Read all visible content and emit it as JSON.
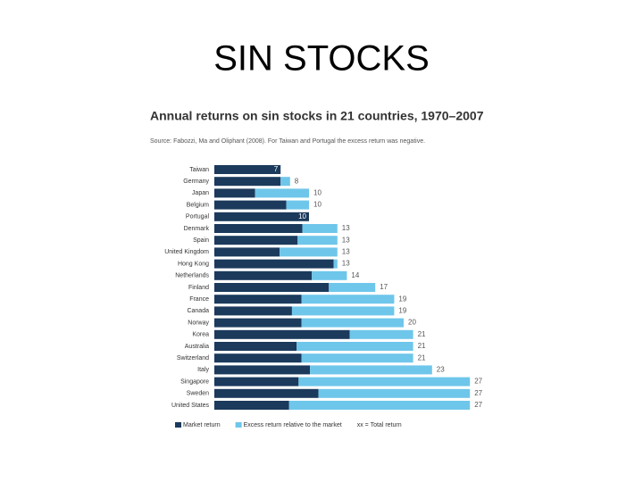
{
  "slide_title": "SIN STOCKS",
  "chart_data": {
    "type": "bar",
    "orientation": "horizontal",
    "stacked": true,
    "title": "Annual returns on sin stocks in 21 countries, 1970–2007",
    "subtitle": "Source: Fabozzi, Ma and Oliphant (2008). For Taiwan and Portugal the excess return was negative.",
    "categories": [
      "Taiwan",
      "Germany",
      "Japan",
      "Belgium",
      "Portugal",
      "Denmark",
      "Spain",
      "United Kingdom",
      "Hong Kong",
      "Netherlands",
      "Finland",
      "France",
      "Canada",
      "Norway",
      "Korea",
      "Australia",
      "Switzerland",
      "Italy",
      "Singapore",
      "Sweden",
      "United States"
    ],
    "series": [
      {
        "name": "Market return",
        "color": "#1b3a5c",
        "values": [
          7,
          7,
          4.3,
          7.6,
          10,
          9.3,
          8.8,
          6.9,
          12.6,
          10.3,
          12.1,
          9.2,
          8.2,
          9.2,
          14.3,
          8.7,
          9.2,
          10.1,
          8.9,
          11,
          7.9
        ]
      },
      {
        "name": "Excess return relative to the market",
        "color": "#6ec6ea",
        "values": [
          null,
          1,
          5.7,
          2.4,
          null,
          3.7,
          4.2,
          6.1,
          0.4,
          3.7,
          4.9,
          9.8,
          10.8,
          10.8,
          6.7,
          12.3,
          11.8,
          12.9,
          18.1,
          16,
          19.1
        ]
      }
    ],
    "totals": [
      7,
      8,
      10,
      10,
      10,
      13,
      13,
      13,
      13,
      14,
      17,
      19,
      19,
      20,
      21,
      21,
      21,
      23,
      27,
      27,
      27
    ],
    "totals_legend": "xx = Total return"
  }
}
